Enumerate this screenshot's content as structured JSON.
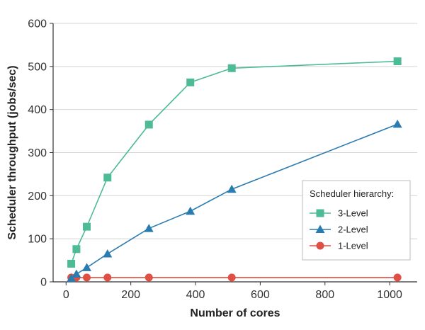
{
  "chart_data": {
    "type": "line",
    "xlabel": "Number of cores",
    "ylabel": "Scheduler throughput (jobs/sec)",
    "xlim": [
      -40,
      1085
    ],
    "ylim": [
      0,
      600
    ],
    "xticks": [
      0,
      200,
      400,
      600,
      800,
      1000
    ],
    "yticks": [
      0,
      100,
      200,
      300,
      400,
      500,
      600
    ],
    "grid": "horizontal",
    "legend": {
      "title": "Scheduler hierarchy:",
      "placement": "lower-right"
    },
    "series": [
      {
        "name": "3-Level",
        "color": "#4dbb95",
        "marker": "square",
        "x": [
          16,
          32,
          64,
          128,
          256,
          384,
          512,
          1024
        ],
        "y": [
          42,
          76,
          128,
          242,
          365,
          463,
          496,
          512
        ]
      },
      {
        "name": "2-Level",
        "color": "#2a7bb0",
        "marker": "triangle",
        "x": [
          16,
          32,
          64,
          128,
          256,
          384,
          512,
          1024
        ],
        "y": [
          8,
          18,
          33,
          65,
          124,
          164,
          215,
          366
        ]
      },
      {
        "name": "1-Level",
        "color": "#e04f44",
        "marker": "circle",
        "x": [
          16,
          32,
          64,
          128,
          256,
          512,
          1024
        ],
        "y": [
          10,
          10,
          10,
          10,
          10,
          10,
          10
        ]
      }
    ]
  }
}
